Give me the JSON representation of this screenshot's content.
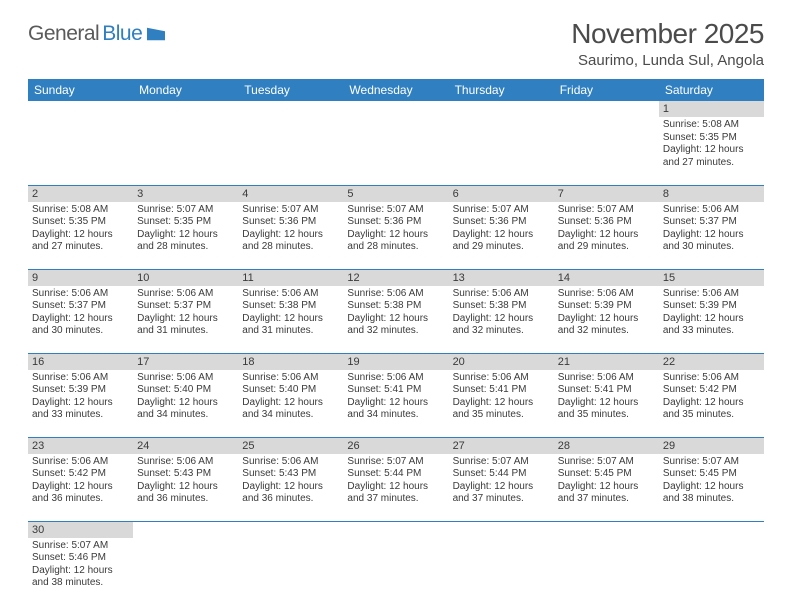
{
  "logo": {
    "text1": "General",
    "text2": "Blue"
  },
  "title": "November 2025",
  "location": "Saurimo, Lunda Sul, Angola",
  "colors": {
    "header_bg": "#2f7fc1",
    "header_fg": "#ffffff",
    "daynum_bg": "#d9d9d9",
    "text": "#3a3a3a",
    "title_fg": "#4b4b4b",
    "rule": "#2f7fc1",
    "page_bg": "#ffffff"
  },
  "weekdays": [
    "Sunday",
    "Monday",
    "Tuesday",
    "Wednesday",
    "Thursday",
    "Friday",
    "Saturday"
  ],
  "weeks": [
    [
      null,
      null,
      null,
      null,
      null,
      null,
      {
        "n": "1",
        "sr": "Sunrise: 5:08 AM",
        "ss": "Sunset: 5:35 PM",
        "d1": "Daylight: 12 hours",
        "d2": "and 27 minutes."
      }
    ],
    [
      {
        "n": "2",
        "sr": "Sunrise: 5:08 AM",
        "ss": "Sunset: 5:35 PM",
        "d1": "Daylight: 12 hours",
        "d2": "and 27 minutes."
      },
      {
        "n": "3",
        "sr": "Sunrise: 5:07 AM",
        "ss": "Sunset: 5:35 PM",
        "d1": "Daylight: 12 hours",
        "d2": "and 28 minutes."
      },
      {
        "n": "4",
        "sr": "Sunrise: 5:07 AM",
        "ss": "Sunset: 5:36 PM",
        "d1": "Daylight: 12 hours",
        "d2": "and 28 minutes."
      },
      {
        "n": "5",
        "sr": "Sunrise: 5:07 AM",
        "ss": "Sunset: 5:36 PM",
        "d1": "Daylight: 12 hours",
        "d2": "and 28 minutes."
      },
      {
        "n": "6",
        "sr": "Sunrise: 5:07 AM",
        "ss": "Sunset: 5:36 PM",
        "d1": "Daylight: 12 hours",
        "d2": "and 29 minutes."
      },
      {
        "n": "7",
        "sr": "Sunrise: 5:07 AM",
        "ss": "Sunset: 5:36 PM",
        "d1": "Daylight: 12 hours",
        "d2": "and 29 minutes."
      },
      {
        "n": "8",
        "sr": "Sunrise: 5:06 AM",
        "ss": "Sunset: 5:37 PM",
        "d1": "Daylight: 12 hours",
        "d2": "and 30 minutes."
      }
    ],
    [
      {
        "n": "9",
        "sr": "Sunrise: 5:06 AM",
        "ss": "Sunset: 5:37 PM",
        "d1": "Daylight: 12 hours",
        "d2": "and 30 minutes."
      },
      {
        "n": "10",
        "sr": "Sunrise: 5:06 AM",
        "ss": "Sunset: 5:37 PM",
        "d1": "Daylight: 12 hours",
        "d2": "and 31 minutes."
      },
      {
        "n": "11",
        "sr": "Sunrise: 5:06 AM",
        "ss": "Sunset: 5:38 PM",
        "d1": "Daylight: 12 hours",
        "d2": "and 31 minutes."
      },
      {
        "n": "12",
        "sr": "Sunrise: 5:06 AM",
        "ss": "Sunset: 5:38 PM",
        "d1": "Daylight: 12 hours",
        "d2": "and 32 minutes."
      },
      {
        "n": "13",
        "sr": "Sunrise: 5:06 AM",
        "ss": "Sunset: 5:38 PM",
        "d1": "Daylight: 12 hours",
        "d2": "and 32 minutes."
      },
      {
        "n": "14",
        "sr": "Sunrise: 5:06 AM",
        "ss": "Sunset: 5:39 PM",
        "d1": "Daylight: 12 hours",
        "d2": "and 32 minutes."
      },
      {
        "n": "15",
        "sr": "Sunrise: 5:06 AM",
        "ss": "Sunset: 5:39 PM",
        "d1": "Daylight: 12 hours",
        "d2": "and 33 minutes."
      }
    ],
    [
      {
        "n": "16",
        "sr": "Sunrise: 5:06 AM",
        "ss": "Sunset: 5:39 PM",
        "d1": "Daylight: 12 hours",
        "d2": "and 33 minutes."
      },
      {
        "n": "17",
        "sr": "Sunrise: 5:06 AM",
        "ss": "Sunset: 5:40 PM",
        "d1": "Daylight: 12 hours",
        "d2": "and 34 minutes."
      },
      {
        "n": "18",
        "sr": "Sunrise: 5:06 AM",
        "ss": "Sunset: 5:40 PM",
        "d1": "Daylight: 12 hours",
        "d2": "and 34 minutes."
      },
      {
        "n": "19",
        "sr": "Sunrise: 5:06 AM",
        "ss": "Sunset: 5:41 PM",
        "d1": "Daylight: 12 hours",
        "d2": "and 34 minutes."
      },
      {
        "n": "20",
        "sr": "Sunrise: 5:06 AM",
        "ss": "Sunset: 5:41 PM",
        "d1": "Daylight: 12 hours",
        "d2": "and 35 minutes."
      },
      {
        "n": "21",
        "sr": "Sunrise: 5:06 AM",
        "ss": "Sunset: 5:41 PM",
        "d1": "Daylight: 12 hours",
        "d2": "and 35 minutes."
      },
      {
        "n": "22",
        "sr": "Sunrise: 5:06 AM",
        "ss": "Sunset: 5:42 PM",
        "d1": "Daylight: 12 hours",
        "d2": "and 35 minutes."
      }
    ],
    [
      {
        "n": "23",
        "sr": "Sunrise: 5:06 AM",
        "ss": "Sunset: 5:42 PM",
        "d1": "Daylight: 12 hours",
        "d2": "and 36 minutes."
      },
      {
        "n": "24",
        "sr": "Sunrise: 5:06 AM",
        "ss": "Sunset: 5:43 PM",
        "d1": "Daylight: 12 hours",
        "d2": "and 36 minutes."
      },
      {
        "n": "25",
        "sr": "Sunrise: 5:06 AM",
        "ss": "Sunset: 5:43 PM",
        "d1": "Daylight: 12 hours",
        "d2": "and 36 minutes."
      },
      {
        "n": "26",
        "sr": "Sunrise: 5:07 AM",
        "ss": "Sunset: 5:44 PM",
        "d1": "Daylight: 12 hours",
        "d2": "and 37 minutes."
      },
      {
        "n": "27",
        "sr": "Sunrise: 5:07 AM",
        "ss": "Sunset: 5:44 PM",
        "d1": "Daylight: 12 hours",
        "d2": "and 37 minutes."
      },
      {
        "n": "28",
        "sr": "Sunrise: 5:07 AM",
        "ss": "Sunset: 5:45 PM",
        "d1": "Daylight: 12 hours",
        "d2": "and 37 minutes."
      },
      {
        "n": "29",
        "sr": "Sunrise: 5:07 AM",
        "ss": "Sunset: 5:45 PM",
        "d1": "Daylight: 12 hours",
        "d2": "and 38 minutes."
      }
    ],
    [
      {
        "n": "30",
        "sr": "Sunrise: 5:07 AM",
        "ss": "Sunset: 5:46 PM",
        "d1": "Daylight: 12 hours",
        "d2": "and 38 minutes."
      },
      null,
      null,
      null,
      null,
      null,
      null
    ]
  ]
}
